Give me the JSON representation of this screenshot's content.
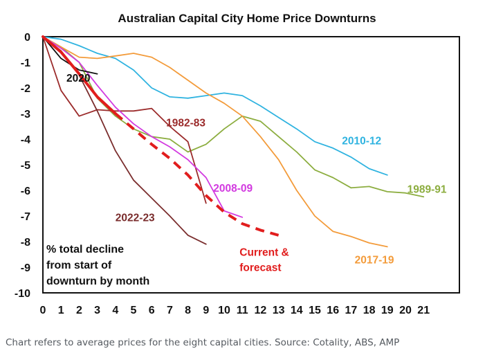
{
  "chart_data": {
    "type": "line",
    "title": "Australian Capital City Home Price Downturns",
    "xlabel": "",
    "ylabel": "",
    "xlim": [
      0,
      21
    ],
    "ylim": [
      -10,
      0
    ],
    "x_ticks": [
      "0",
      "1",
      "2",
      "3",
      "4",
      "5",
      "6",
      "7",
      "8",
      "9",
      "10",
      "11",
      "12",
      "13",
      "14",
      "15",
      "16",
      "17",
      "18",
      "19",
      "20",
      "21"
    ],
    "y_ticks": [
      "0",
      "-1",
      "-2",
      "-3",
      "-4",
      "-5",
      "-6",
      "-7",
      "-8",
      "-9",
      "-10"
    ],
    "grid": false,
    "annotation": [
      "% total decline",
      "from start of",
      "downturn by month"
    ],
    "series": [
      {
        "name": "2010-12",
        "color": "#2fb3e0",
        "dashed": false,
        "points": [
          [
            0,
            0
          ],
          [
            1,
            -0.1
          ],
          [
            2,
            -0.35
          ],
          [
            3,
            -0.65
          ],
          [
            4,
            -0.85
          ],
          [
            5,
            -1.3
          ],
          [
            6,
            -2.0
          ],
          [
            7,
            -2.35
          ],
          [
            8,
            -2.4
          ],
          [
            9,
            -2.3
          ],
          [
            10,
            -2.2
          ],
          [
            11,
            -2.3
          ],
          [
            12,
            -2.7
          ],
          [
            13,
            -3.15
          ],
          [
            14,
            -3.6
          ],
          [
            15,
            -4.1
          ],
          [
            16,
            -4.35
          ],
          [
            17,
            -4.7
          ],
          [
            18,
            -5.15
          ],
          [
            19,
            -5.4
          ]
        ]
      },
      {
        "name": "1989-91",
        "color": "#8cad3f",
        "dashed": false,
        "points": [
          [
            0,
            0
          ],
          [
            1,
            -0.4
          ],
          [
            2,
            -1.0
          ],
          [
            3,
            -2.4
          ],
          [
            4,
            -3.1
          ],
          [
            5,
            -3.6
          ],
          [
            6,
            -3.9
          ],
          [
            7,
            -4.0
          ],
          [
            8,
            -4.5
          ],
          [
            9,
            -4.2
          ],
          [
            10,
            -3.6
          ],
          [
            11,
            -3.1
          ],
          [
            12,
            -3.3
          ],
          [
            13,
            -3.9
          ],
          [
            14,
            -4.5
          ],
          [
            15,
            -5.2
          ],
          [
            16,
            -5.5
          ],
          [
            17,
            -5.9
          ],
          [
            18,
            -5.85
          ],
          [
            19,
            -6.05
          ],
          [
            20,
            -6.1
          ],
          [
            21,
            -6.25
          ]
        ]
      },
      {
        "name": "2017-19",
        "color": "#f39b3a",
        "dashed": false,
        "points": [
          [
            0,
            0
          ],
          [
            1,
            -0.4
          ],
          [
            2,
            -0.8
          ],
          [
            3,
            -0.85
          ],
          [
            4,
            -0.75
          ],
          [
            5,
            -0.65
          ],
          [
            6,
            -0.8
          ],
          [
            7,
            -1.2
          ],
          [
            8,
            -1.7
          ],
          [
            9,
            -2.2
          ],
          [
            10,
            -2.6
          ],
          [
            11,
            -3.1
          ],
          [
            12,
            -3.9
          ],
          [
            13,
            -4.8
          ],
          [
            14,
            -6.0
          ],
          [
            15,
            -7.0
          ],
          [
            16,
            -7.6
          ],
          [
            17,
            -7.8
          ],
          [
            18,
            -8.05
          ],
          [
            19,
            -8.2
          ]
        ]
      },
      {
        "name": "1982-83",
        "color": "#9b2b2b",
        "dashed": false,
        "points": [
          [
            0,
            0
          ],
          [
            1,
            -2.1
          ],
          [
            2,
            -3.1
          ],
          [
            3,
            -2.85
          ],
          [
            4,
            -2.9
          ],
          [
            5,
            -2.9
          ],
          [
            6,
            -2.8
          ],
          [
            7,
            -3.5
          ],
          [
            8,
            -4.1
          ],
          [
            9,
            -6.5
          ]
        ]
      },
      {
        "name": "2008-09",
        "color": "#d23ae0",
        "dashed": false,
        "points": [
          [
            0,
            0
          ],
          [
            1,
            -0.45
          ],
          [
            2,
            -1.0
          ],
          [
            3,
            -1.9
          ],
          [
            4,
            -2.75
          ],
          [
            5,
            -3.4
          ],
          [
            6,
            -3.9
          ],
          [
            7,
            -4.3
          ],
          [
            8,
            -4.8
          ],
          [
            9,
            -5.5
          ],
          [
            10,
            -6.8
          ],
          [
            11,
            -7.05
          ]
        ]
      },
      {
        "name": "2022-23",
        "color": "#7a2d2d",
        "dashed": false,
        "points": [
          [
            0,
            0
          ],
          [
            1,
            -0.55
          ],
          [
            2,
            -1.5
          ],
          [
            3,
            -2.9
          ],
          [
            4,
            -4.45
          ],
          [
            5,
            -5.6
          ],
          [
            6,
            -6.3
          ],
          [
            7,
            -7.0
          ],
          [
            8,
            -7.75
          ],
          [
            9,
            -8.1
          ]
        ]
      },
      {
        "name": "2020",
        "color": "#111111",
        "dashed": false,
        "points": [
          [
            0,
            0
          ],
          [
            1,
            -0.85
          ],
          [
            2,
            -1.3
          ],
          [
            3,
            -1.45
          ]
        ]
      },
      {
        "name": "Current & forecast",
        "color": "#e11d1d",
        "dashed": false,
        "points": [
          [
            0,
            0
          ],
          [
            1,
            -0.6
          ],
          [
            2,
            -1.45
          ],
          [
            3,
            -2.35
          ],
          [
            4,
            -3.0
          ]
        ]
      },
      {
        "name": "",
        "color": "#e11d1d",
        "dashed": true,
        "points": [
          [
            4,
            -3.0
          ],
          [
            5,
            -3.6
          ],
          [
            6,
            -4.2
          ],
          [
            7,
            -4.75
          ],
          [
            8,
            -5.4
          ],
          [
            9,
            -6.2
          ],
          [
            10,
            -6.85
          ],
          [
            11,
            -7.3
          ],
          [
            12,
            -7.55
          ],
          [
            13,
            -7.75
          ]
        ]
      }
    ],
    "labels": [
      {
        "text": "2020",
        "color": "#111111",
        "at": [
          1.3,
          -1.75
        ]
      },
      {
        "text": "1982-83",
        "color": "#9b2b2b",
        "at": [
          6.8,
          -3.5
        ]
      },
      {
        "text": "2010-12",
        "color": "#2fb3e0",
        "at": [
          16.5,
          -4.2
        ]
      },
      {
        "text": "2008-09",
        "color": "#d23ae0",
        "at": [
          9.4,
          -6.05
        ]
      },
      {
        "text": "1989-91",
        "color": "#8cad3f",
        "at": [
          20.1,
          -6.1
        ]
      },
      {
        "text": "2022-23",
        "color": "#7a2d2d",
        "at": [
          4.0,
          -7.2
        ]
      },
      {
        "text": "Current &",
        "color": "#e11d1d",
        "at": [
          10.85,
          -8.55
        ]
      },
      {
        "text": "forecast",
        "color": "#e11d1d",
        "at": [
          10.85,
          -9.15
        ]
      },
      {
        "text": "2017-19",
        "color": "#f39b3a",
        "at": [
          17.2,
          -8.85
        ]
      }
    ]
  },
  "caption": "Chart refers to average prices for the eight capital cities. Source: Cotality, ABS, AMP"
}
